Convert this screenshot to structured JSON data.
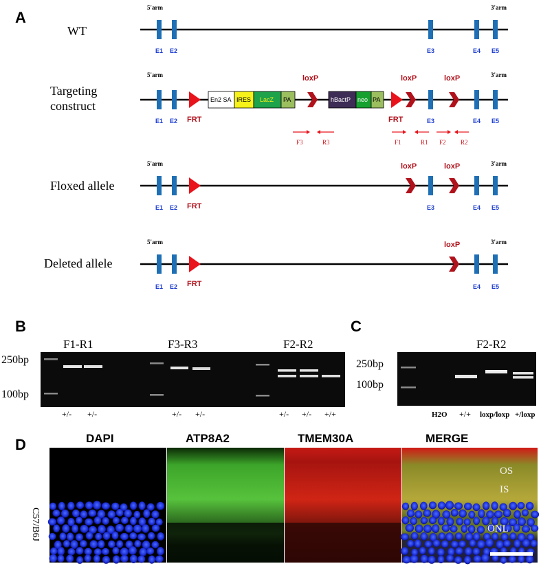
{
  "panelA": {
    "letter": "A",
    "arm5": "5'arm",
    "arm3": "3'arm",
    "rows": {
      "wt": {
        "label": "WT"
      },
      "targeting": {
        "label_line1": "Targeting",
        "label_line2": "construct"
      },
      "floxed": {
        "label": "Floxed allele"
      },
      "deleted": {
        "label": "Deleted allele"
      }
    },
    "exons": [
      "E1",
      "E2",
      "E3",
      "E4",
      "E5"
    ],
    "features": {
      "frt": "FRT",
      "loxp": "loxP"
    },
    "cassette1": [
      "En2 SA",
      "IRES",
      "LacZ",
      "PA"
    ],
    "cassette2": [
      "hBactP",
      "neo",
      "PA"
    ],
    "primers": [
      "F3",
      "R3",
      "F1",
      "R1",
      "F2",
      "R2"
    ],
    "colors": {
      "exon": "#1f6fb5",
      "frt": "#e8131b",
      "loxp": "#b0121c",
      "en2sa": "#ffffff",
      "ires": "#f7f21a",
      "lacz": "#1ea24a",
      "pa": "#9bbe5e",
      "hbactp": "#3d2c55",
      "neo": "#16a02f"
    }
  },
  "panelB": {
    "letter": "B",
    "marker_high": "250bp",
    "marker_low": "100bp",
    "gels": [
      {
        "title": "F1-R1",
        "lanes": [
          "+/-",
          "+/-"
        ]
      },
      {
        "title": "F3-R3",
        "lanes": [
          "+/-",
          "+/-"
        ]
      },
      {
        "title": "F2-R2",
        "lanes": [
          "+/-",
          "+/-",
          "+/+"
        ]
      }
    ]
  },
  "panelC": {
    "letter": "C",
    "title": "F2-R2",
    "marker_high": "250bp",
    "marker_low": "100bp",
    "lanes": [
      "H2O",
      "+/+",
      "loxp/loxp",
      "+/loxp"
    ]
  },
  "panelD": {
    "letter": "D",
    "strain": "C57/B6J",
    "channels": [
      "DAPI",
      "ATP8A2",
      "TMEM30A",
      "MERGE"
    ],
    "regions": [
      "OS",
      "IS",
      "ONL"
    ]
  }
}
